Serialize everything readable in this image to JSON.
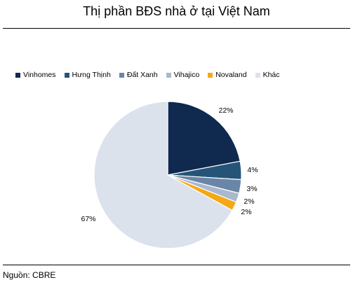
{
  "title": "Thị phần BĐS nhà ở tại Việt Nam",
  "source": "Nguồn: CBRE",
  "chart_data": {
    "type": "pie",
    "title": "Thị phần BĐS nhà ở tại Việt Nam",
    "legend_position": "top",
    "series": [
      {
        "name": "Vinhomes",
        "value": 22,
        "label": "22%",
        "color": "#10294f"
      },
      {
        "name": "Hưng Thịnh",
        "value": 4,
        "label": "4%",
        "color": "#265479"
      },
      {
        "name": "Đất Xanh",
        "value": 3,
        "label": "3%",
        "color": "#6a86a6"
      },
      {
        "name": "Vihajico",
        "value": 2,
        "label": "2%",
        "color": "#a8b8cf"
      },
      {
        "name": "Novaland",
        "value": 2,
        "label": "2%",
        "color": "#f5a815"
      },
      {
        "name": "Khác",
        "value": 67,
        "label": "67%",
        "color": "#dce2ec"
      }
    ]
  }
}
